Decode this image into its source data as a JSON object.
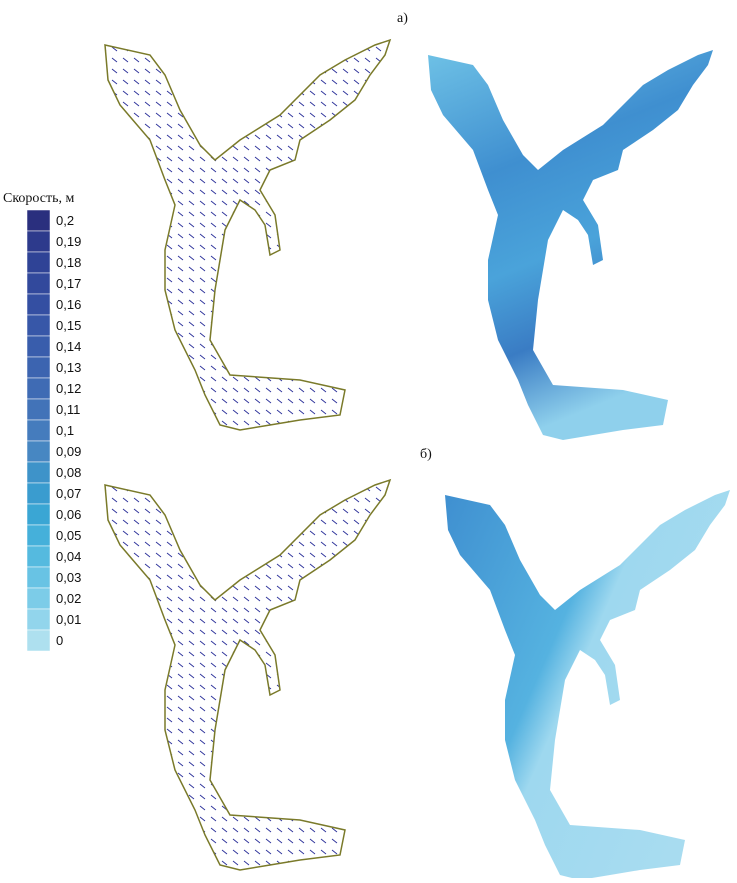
{
  "panels": [
    {
      "label": "а)"
    },
    {
      "label": "б)"
    }
  ],
  "legend": {
    "title": "Скорость, м",
    "levels": [
      {
        "label": "0,2",
        "color": "#2a2f7e"
      },
      {
        "label": "0,19",
        "color": "#2d3a8c"
      },
      {
        "label": "0,18",
        "color": "#2f4396"
      },
      {
        "label": "0,17",
        "color": "#32499c"
      },
      {
        "label": "0,16",
        "color": "#344fa2"
      },
      {
        "label": "0,15",
        "color": "#3757a8"
      },
      {
        "label": "0,14",
        "color": "#395dac"
      },
      {
        "label": "0,13",
        "color": "#3c64b0"
      },
      {
        "label": "0,12",
        "color": "#3f6bb4"
      },
      {
        "label": "0,11",
        "color": "#4273b8"
      },
      {
        "label": "0,1",
        "color": "#457cbd"
      },
      {
        "label": "0,09",
        "color": "#4787c2"
      },
      {
        "label": "0,08",
        "color": "#3e93c9"
      },
      {
        "label": "0,07",
        "color": "#3a9ccf"
      },
      {
        "label": "0,06",
        "color": "#3aa6d4"
      },
      {
        "label": "0,05",
        "color": "#45b0da"
      },
      {
        "label": "0,04",
        "color": "#55badf"
      },
      {
        "label": "0,03",
        "color": "#68c3e4"
      },
      {
        "label": "0,02",
        "color": "#7ccce8"
      },
      {
        "label": "0,01",
        "color": "#92d5ec"
      },
      {
        "label": "0",
        "color": "#aee0ef"
      }
    ]
  }
}
